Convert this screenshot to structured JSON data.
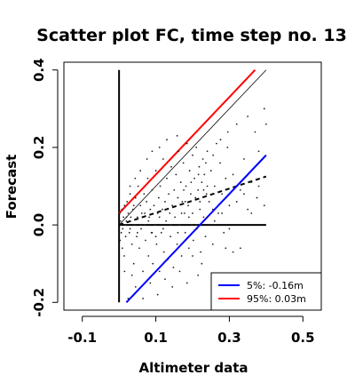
{
  "chart_data": {
    "type": "scatter",
    "title": "Scatter plot FC, time step no. 13",
    "xlabel": "Altimeter data",
    "ylabel": "Forecast",
    "xlim": [
      -0.15,
      0.55
    ],
    "ylim": [
      -0.22,
      0.42
    ],
    "xticks": [
      -0.1,
      0.1,
      0.3,
      0.5
    ],
    "xtick_labels": [
      "-0.1",
      "0.1",
      "0.3",
      "0.5"
    ],
    "yticks": [
      -0.2,
      0.0,
      0.2,
      0.4
    ],
    "ytick_labels": [
      "-0.2",
      "0.0",
      "0.2",
      "0.4"
    ],
    "grid": false,
    "legend_position": "bottom-right",
    "legend": [
      {
        "label": "5%: -0.16m",
        "color": "#0000ff"
      },
      {
        "label": "95%:  0.03m",
        "color": "#ff0000"
      }
    ],
    "lines": [
      {
        "role": "reference-vertical",
        "color": "#000000",
        "style": "solid",
        "x": [
          0.0,
          0.0
        ],
        "y": [
          -0.2,
          0.4
        ]
      },
      {
        "role": "reference-horizontal",
        "color": "#000000",
        "style": "solid",
        "x": [
          0.0,
          0.4
        ],
        "y": [
          0.0,
          0.0
        ]
      },
      {
        "role": "one-to-one",
        "color": "#000000",
        "style": "thin",
        "x": [
          0.0,
          0.4
        ],
        "y": [
          0.0,
          0.4
        ]
      },
      {
        "role": "regression",
        "color": "#000000",
        "style": "dashed",
        "x": [
          0.0,
          0.4
        ],
        "y": [
          0.0,
          0.125
        ]
      },
      {
        "role": "upper-95",
        "color": "#ff0000",
        "style": "solid",
        "x": [
          0.0,
          0.37
        ],
        "y": [
          0.03,
          0.4
        ]
      },
      {
        "role": "lower-5",
        "color": "#0000ff",
        "style": "solid",
        "x": [
          0.02,
          0.4
        ],
        "y": [
          -0.2,
          0.18
        ]
      }
    ],
    "points": [
      [
        0.002,
        0.03
      ],
      [
        0.006,
        -0.02
      ],
      [
        0.004,
        0.01
      ],
      [
        0.008,
        0.04
      ],
      [
        0.01,
        -0.01
      ],
      [
        0.012,
        0.02
      ],
      [
        0.003,
        -0.04
      ],
      [
        0.015,
        0.05
      ],
      [
        0.018,
        -0.03
      ],
      [
        0.02,
        0.01
      ],
      [
        0.022,
        0.06
      ],
      [
        0.005,
        0.0
      ],
      [
        0.009,
        -0.06
      ],
      [
        0.014,
        -0.08
      ],
      [
        0.017,
        0.0
      ],
      [
        0.025,
        0.03
      ],
      [
        0.028,
        -0.02
      ],
      [
        0.03,
        0.08
      ],
      [
        0.032,
        0.02
      ],
      [
        0.035,
        -0.05
      ],
      [
        0.038,
        0.04
      ],
      [
        0.04,
        -0.1
      ],
      [
        0.042,
        0.0
      ],
      [
        0.045,
        0.07
      ],
      [
        0.048,
        -0.03
      ],
      [
        0.05,
        0.02
      ],
      [
        0.052,
        0.1
      ],
      [
        0.055,
        -0.06
      ],
      [
        0.058,
        0.05
      ],
      [
        0.06,
        -0.01
      ],
      [
        0.062,
        0.03
      ],
      [
        0.065,
        -0.12
      ],
      [
        0.068,
        0.08
      ],
      [
        0.07,
        0.0
      ],
      [
        0.072,
        -0.04
      ],
      [
        0.075,
        0.06
      ],
      [
        0.078,
        0.12
      ],
      [
        0.08,
        -0.08
      ],
      [
        0.082,
        0.02
      ],
      [
        0.085,
        0.04
      ],
      [
        0.088,
        -0.02
      ],
      [
        0.09,
        0.09
      ],
      [
        0.092,
        -0.1
      ],
      [
        0.095,
        0.05
      ],
      [
        0.098,
        0.0
      ],
      [
        0.1,
        0.14
      ],
      [
        0.102,
        -0.05
      ],
      [
        0.105,
        0.03
      ],
      [
        0.108,
        0.07
      ],
      [
        0.11,
        -0.12
      ],
      [
        0.112,
        0.1
      ],
      [
        0.115,
        -0.02
      ],
      [
        0.118,
        0.04
      ],
      [
        0.12,
        0.17
      ],
      [
        0.122,
        -0.07
      ],
      [
        0.125,
        0.06
      ],
      [
        0.128,
        0.01
      ],
      [
        0.13,
        0.12
      ],
      [
        0.132,
        -0.09
      ],
      [
        0.135,
        0.08
      ],
      [
        0.138,
        0.03
      ],
      [
        0.14,
        -0.03
      ],
      [
        0.142,
        0.15
      ],
      [
        0.145,
        0.05
      ],
      [
        0.148,
        -0.11
      ],
      [
        0.15,
        0.09
      ],
      [
        0.152,
        0.02
      ],
      [
        0.155,
        0.13
      ],
      [
        0.158,
        -0.05
      ],
      [
        0.16,
        0.07
      ],
      [
        0.162,
        0.19
      ],
      [
        0.165,
        0.0
      ],
      [
        0.168,
        0.11
      ],
      [
        0.17,
        -0.08
      ],
      [
        0.172,
        0.06
      ],
      [
        0.175,
        0.16
      ],
      [
        0.178,
        0.03
      ],
      [
        0.18,
        -0.02
      ],
      [
        0.182,
        0.1
      ],
      [
        0.185,
        0.21
      ],
      [
        0.188,
        0.05
      ],
      [
        0.19,
        -0.06
      ],
      [
        0.192,
        0.14
      ],
      [
        0.195,
        0.08
      ],
      [
        0.198,
        0.0
      ],
      [
        0.2,
        0.18
      ],
      [
        0.202,
        -0.04
      ],
      [
        0.205,
        0.12
      ],
      [
        0.208,
        0.07
      ],
      [
        0.21,
        0.2
      ],
      [
        0.212,
        -0.01
      ],
      [
        0.215,
        0.09
      ],
      [
        0.218,
        0.15
      ],
      [
        0.22,
        0.04
      ],
      [
        0.222,
        -0.07
      ],
      [
        0.225,
        0.11
      ],
      [
        0.228,
        0.17
      ],
      [
        0.23,
        0.02
      ],
      [
        0.232,
        0.13
      ],
      [
        0.235,
        -0.03
      ],
      [
        0.238,
        0.08
      ],
      [
        0.24,
        0.19
      ],
      [
        0.245,
        0.06
      ],
      [
        0.25,
        0.14
      ],
      [
        0.255,
        -0.05
      ],
      [
        0.26,
        0.1
      ],
      [
        0.265,
        0.21
      ],
      [
        0.27,
        0.03
      ],
      [
        0.275,
        0.16
      ],
      [
        0.28,
        0.08
      ],
      [
        0.285,
        -0.02
      ],
      [
        0.29,
        0.12
      ],
      [
        0.295,
        0.2
      ],
      [
        0.3,
        0.05
      ],
      [
        0.31,
        0.13
      ],
      [
        0.32,
        0.26
      ],
      [
        0.33,
        0.09
      ],
      [
        0.34,
        0.17
      ],
      [
        0.35,
        0.28
      ],
      [
        0.36,
        0.11
      ],
      [
        0.37,
        0.24
      ],
      [
        0.38,
        0.19
      ],
      [
        0.395,
        0.3
      ],
      [
        0.4,
        0.26
      ],
      [
        0.395,
        0.05
      ],
      [
        0.375,
        0.07
      ],
      [
        0.35,
        0.04
      ],
      [
        0.33,
        -0.06
      ],
      [
        0.31,
        -0.07
      ],
      [
        0.29,
        -0.06
      ],
      [
        0.255,
        0.04
      ],
      [
        0.225,
        -0.1
      ],
      [
        0.215,
        -0.13
      ],
      [
        0.2,
        -0.08
      ],
      [
        0.185,
        -0.15
      ],
      [
        0.165,
        -0.12
      ],
      [
        0.145,
        -0.16
      ],
      [
        0.125,
        -0.14
      ],
      [
        0.105,
        -0.18
      ],
      [
        0.085,
        -0.15
      ],
      [
        0.065,
        -0.19
      ],
      [
        0.045,
        -0.16
      ],
      [
        0.035,
        -0.13
      ],
      [
        0.025,
        -0.19
      ],
      [
        0.015,
        -0.12
      ],
      [
        0.03,
        0.1
      ],
      [
        0.044,
        0.12
      ],
      [
        0.058,
        0.14
      ],
      [
        0.076,
        0.17
      ],
      [
        0.09,
        0.19
      ],
      [
        0.11,
        0.2
      ],
      [
        0.13,
        0.22
      ],
      [
        0.158,
        0.23
      ],
      [
        0.176,
        0.09
      ],
      [
        0.196,
        0.11
      ],
      [
        0.216,
        0.13
      ],
      [
        0.236,
        0.16
      ],
      [
        0.256,
        0.18
      ],
      [
        0.276,
        0.22
      ],
      [
        0.296,
        0.24
      ],
      [
        0.24,
        0.02
      ],
      [
        0.26,
        0.01
      ],
      [
        0.28,
        0.03
      ],
      [
        0.3,
        -0.01
      ],
      [
        0.32,
        0.06
      ],
      [
        0.34,
        0.08
      ],
      [
        0.36,
        0.03
      ],
      [
        0.38,
        0.1
      ],
      [
        0.13,
        0.04
      ],
      [
        0.14,
        0.0
      ],
      [
        0.06,
        0.0
      ],
      [
        0.07,
        0.03
      ],
      [
        0.05,
        -0.02
      ],
      [
        0.04,
        0.05
      ],
      [
        0.03,
        -0.01
      ],
      [
        0.02,
        0.02
      ],
      [
        0.1,
        -0.03
      ],
      [
        0.11,
        0.02
      ],
      [
        0.12,
        -0.01
      ],
      [
        0.08,
        0.01
      ],
      [
        0.09,
        -0.02
      ],
      [
        0.16,
        -0.02
      ],
      [
        0.17,
        0.03
      ],
      [
        0.18,
        0.06
      ],
      [
        0.19,
        0.02
      ],
      [
        0.2,
        0.03
      ],
      [
        0.21,
        0.0
      ],
      [
        0.22,
        0.06
      ],
      [
        0.23,
        0.09
      ],
      [
        0.24,
        0.1
      ]
    ]
  }
}
